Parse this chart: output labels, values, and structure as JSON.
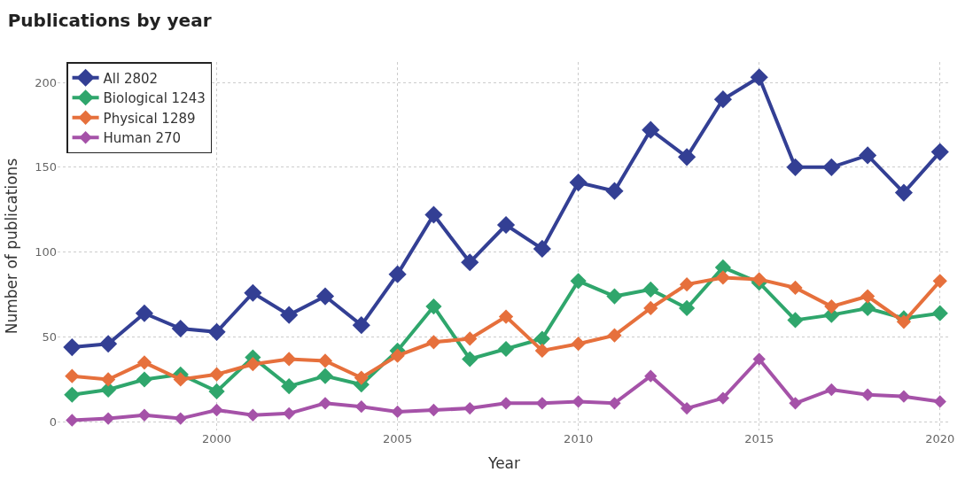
{
  "chart_data": {
    "type": "line",
    "title": "Publications by year",
    "xlabel": "Year",
    "ylabel": "Number of publications",
    "x": [
      1996,
      1997,
      1998,
      1999,
      2000,
      2001,
      2002,
      2003,
      2004,
      2005,
      2006,
      2007,
      2008,
      2009,
      2010,
      2011,
      2012,
      2013,
      2014,
      2015,
      2016,
      2017,
      2018,
      2019,
      2020
    ],
    "series": [
      {
        "name": "All 2802",
        "color": "#333f94",
        "values": [
          44,
          46,
          64,
          55,
          53,
          76,
          63,
          74,
          57,
          87,
          122,
          94,
          116,
          102,
          141,
          136,
          172,
          156,
          190,
          203,
          150,
          150,
          157,
          135,
          159
        ]
      },
      {
        "name": "Biological 1243",
        "color": "#2fa66c",
        "values": [
          16,
          19,
          25,
          28,
          18,
          38,
          21,
          27,
          22,
          42,
          68,
          37,
          43,
          49,
          83,
          74,
          78,
          67,
          91,
          82,
          60,
          63,
          67,
          61,
          64
        ]
      },
      {
        "name": "Physical 1289",
        "color": "#e6703c",
        "values": [
          27,
          25,
          35,
          25,
          28,
          34,
          37,
          36,
          26,
          39,
          47,
          49,
          62,
          42,
          46,
          51,
          67,
          81,
          85,
          84,
          79,
          68,
          74,
          59,
          83
        ]
      },
      {
        "name": "Human 270",
        "color": "#a552a8",
        "values": [
          1,
          2,
          4,
          2,
          7,
          4,
          5,
          11,
          9,
          6,
          7,
          8,
          11,
          11,
          12,
          11,
          27,
          8,
          14,
          37,
          11,
          19,
          16,
          15,
          12
        ]
      }
    ],
    "xlim": [
      1995.6,
      2020.3
    ],
    "xticks": [
      2000,
      2005,
      2010,
      2015,
      2020
    ],
    "ylim": [
      -5,
      212
    ],
    "yticks": [
      0,
      50,
      100,
      150,
      200
    ],
    "grid": true,
    "legend": "top left",
    "marker": "diamond",
    "line_style": "solid"
  }
}
